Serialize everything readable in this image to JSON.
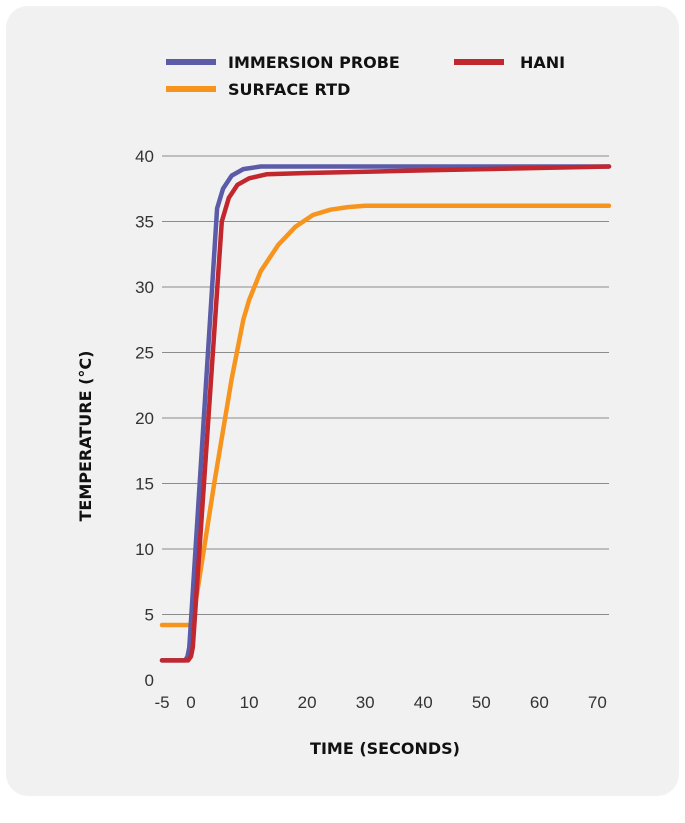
{
  "chart_data": {
    "type": "line",
    "title": "",
    "xlabel": "TIME (SECONDS)",
    "ylabel": "TEMPERATURE (°C)",
    "xlim": [
      -5,
      72
    ],
    "ylim": [
      0,
      40
    ],
    "x_ticks": [
      "-5",
      "0",
      "10",
      "20",
      "30",
      "40",
      "50",
      "60",
      "70"
    ],
    "y_ticks": [
      "0",
      "5",
      "10",
      "15",
      "20",
      "25",
      "30",
      "35",
      "40"
    ],
    "grid": "horizontal",
    "legend_position": "top",
    "series": [
      {
        "name": "IMMERSION PROBE",
        "color": "#5b5ba8",
        "x": [
          -5,
          -1,
          -0.6,
          -0.3,
          4.5,
          5.5,
          7,
          9,
          12,
          20,
          40,
          72
        ],
        "y": [
          1.5,
          1.5,
          1.8,
          2.5,
          36,
          37.5,
          38.5,
          39,
          39.2,
          39.2,
          39.2,
          39.2
        ]
      },
      {
        "name": "HANI",
        "color": "#c1272d",
        "x": [
          -5,
          -0.5,
          0,
          0.3,
          5.3,
          6.5,
          8,
          10,
          13,
          20,
          40,
          72
        ],
        "y": [
          1.5,
          1.5,
          1.8,
          2.5,
          35,
          36.8,
          37.8,
          38.3,
          38.6,
          38.7,
          38.9,
          39.2
        ]
      },
      {
        "name": "SURFACE RTD",
        "color": "#f7941d",
        "x": [
          -5,
          0,
          1,
          4,
          7,
          9,
          10,
          12,
          15,
          18,
          21,
          24,
          27,
          30,
          40,
          72
        ],
        "y": [
          4.2,
          4.2,
          6.5,
          15,
          23,
          27.5,
          29,
          31.2,
          33.2,
          34.6,
          35.5,
          35.9,
          36.1,
          36.2,
          36.2,
          36.2
        ]
      }
    ]
  }
}
